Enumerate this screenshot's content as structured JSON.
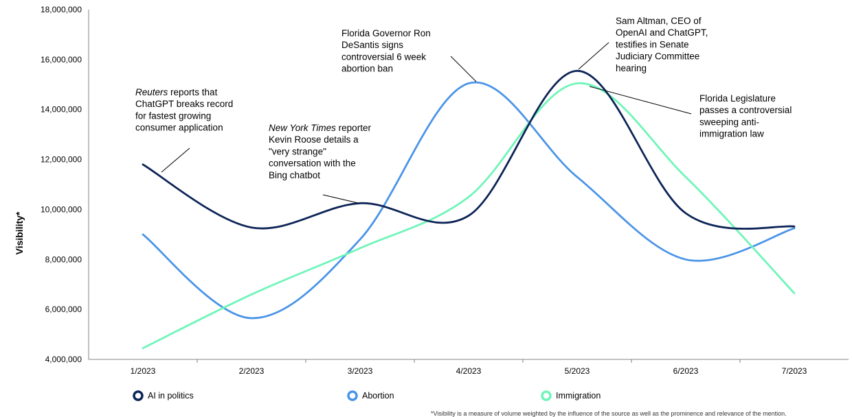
{
  "chart_data": {
    "type": "line",
    "categories": [
      "1/2023",
      "2/2023",
      "3/2023",
      "4/2023",
      "5/2023",
      "6/2023",
      "7/2023"
    ],
    "ylabel": "Visibility*",
    "ylim": [
      4000000,
      18000000
    ],
    "yticks": [
      "4,000,000",
      "6,000,000",
      "8,000,000",
      "10,000,000",
      "12,000,000",
      "14,000,000",
      "16,000,000",
      "18,000,000"
    ],
    "grid": false,
    "legend_position": "bottom",
    "series": [
      {
        "name": "AI in politics",
        "color": "#0d2457",
        "values": [
          11800000,
          9280000,
          10250000,
          9750000,
          15550000,
          9850000,
          9320000
        ]
      },
      {
        "name": "Abortion",
        "color": "#4a94e8",
        "values": [
          9000000,
          5650000,
          8800000,
          15050000,
          11300000,
          8000000,
          9250000
        ]
      },
      {
        "name": "Immigration",
        "color": "#6ff5b9",
        "values": [
          4450000,
          6600000,
          8450000,
          10500000,
          15050000,
          11300000,
          6650000
        ]
      }
    ],
    "annotations": [
      {
        "lines": [
          {
            "italic": "Reuters",
            "text": " reports that"
          },
          {
            "text": "ChatGPT breaks record"
          },
          {
            "text": "for fastest growing"
          },
          {
            "text": "consumer application"
          }
        ]
      },
      {
        "lines": [
          {
            "italic": "New York Times",
            "text": " reporter"
          },
          {
            "text": "Kevin Roose details a"
          },
          {
            "text": "\"very strange\""
          },
          {
            "text": "conversation with the"
          },
          {
            "text": "Bing chatbot"
          }
        ]
      },
      {
        "lines": [
          {
            "text": "Florida Governor Ron"
          },
          {
            "text": "DeSantis signs"
          },
          {
            "text": "controversial 6 week"
          },
          {
            "text": "abortion ban"
          }
        ]
      },
      {
        "lines": [
          {
            "text": "Sam Altman, CEO of"
          },
          {
            "text": "OpenAI and ChatGPT,"
          },
          {
            "text": "testifies in Senate"
          },
          {
            "text": "Judiciary Committee"
          },
          {
            "text": "hearing"
          }
        ]
      },
      {
        "lines": [
          {
            "text": "Florida Legislature"
          },
          {
            "text": "passes a controversial"
          },
          {
            "text": "sweeping anti-"
          },
          {
            "text": "immigration law"
          }
        ]
      }
    ],
    "footnote": "*Visibility is a measure of volume weighted by the influence of the source as well as the prominence and relevance of the mention."
  }
}
